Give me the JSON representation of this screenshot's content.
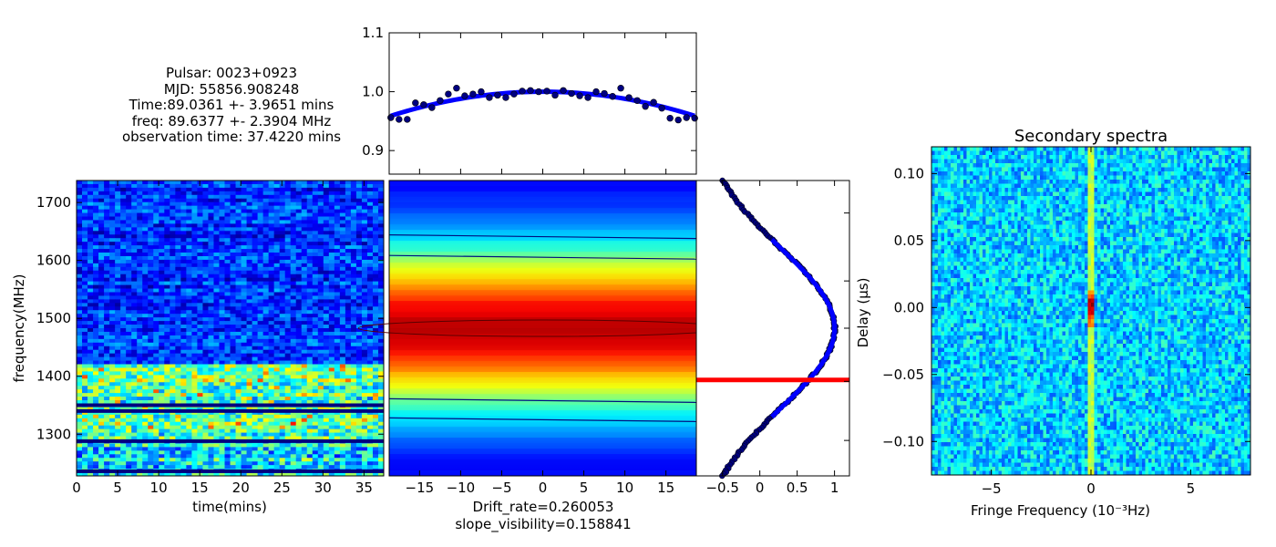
{
  "info": {
    "pulsar": "Pulsar: 0023+0923",
    "mjd": "MJD: 55856.908248",
    "time": "Time:89.0361 +- 3.9651 mins",
    "freq": "freq: 89.6377 +- 2.3904 MHz",
    "obs_time": "observation time: 37.4220 mins"
  },
  "colors": {
    "fit_line": "#0000ff",
    "points": "#000080",
    "marker_line": "#ff0000",
    "colormap": "jet"
  },
  "chart_data": [
    {
      "id": "dynamic-spectrum",
      "type": "heatmap",
      "xlabel": "time(mins)",
      "ylabel": "frequency(MHz)",
      "xlim": [
        0,
        37.4
      ],
      "ylim": [
        1228,
        1738
      ],
      "xticks": [
        0,
        5,
        10,
        15,
        20,
        25,
        30,
        35
      ],
      "yticks": [
        1300,
        1400,
        1500,
        1600,
        1700
      ],
      "bright_bands": [
        [
          1290,
          1420
        ]
      ],
      "dark_lines_mhz": [
        1236,
        1288,
        1340,
        1350
      ]
    },
    {
      "id": "visibility-fit",
      "type": "scatter",
      "ylim": [
        0.86,
        1.1
      ],
      "xlim": [
        -18.7,
        18.7
      ],
      "yticks": [
        0.9,
        1.0,
        1.1
      ],
      "points_x": [
        -18.5,
        -17.5,
        -16.5,
        -15.5,
        -14.5,
        -13.5,
        -12.5,
        -11.5,
        -10.5,
        -9.5,
        -8.5,
        -7.5,
        -6.5,
        -5.5,
        -4.5,
        -3.5,
        -2.5,
        -1.5,
        -0.5,
        0.5,
        1.5,
        2.5,
        3.5,
        4.5,
        5.5,
        6.5,
        7.5,
        8.5,
        9.5,
        10.5,
        11.5,
        12.5,
        13.5,
        14.5,
        15.5,
        16.5,
        17.5,
        18.5
      ],
      "points_y": [
        0.956,
        0.953,
        0.953,
        0.981,
        0.978,
        0.973,
        0.985,
        0.996,
        1.006,
        0.993,
        0.996,
        1.0,
        0.99,
        0.994,
        0.99,
        0.996,
        1.001,
        1.002,
        1.0,
        1.001,
        0.994,
        1.002,
        0.997,
        0.993,
        0.99,
        1.0,
        0.997,
        0.992,
        1.006,
        0.99,
        0.985,
        0.975,
        0.982,
        0.972,
        0.955,
        0.952,
        0.956,
        0.955
      ],
      "fit": "y = 1.0 - 0.00012*x^2"
    },
    {
      "id": "correlation-map",
      "type": "heatmap",
      "xlabel": "Drift_rate=0.260053",
      "xlabel2": "slope_visibility=0.158841",
      "xlim": [
        -18.7,
        18.7
      ],
      "xticks": [
        -15,
        -10,
        -5,
        0,
        5,
        10,
        15
      ],
      "peak_fraction_y": 0.5
    },
    {
      "id": "frequency-profile",
      "type": "line",
      "xlim": [
        -0.85,
        1.2
      ],
      "xticks": [
        -0.5,
        0.0,
        0.5,
        1.0
      ],
      "profile": "gaussian",
      "peak_value": 1.0,
      "width_fraction": 0.27,
      "fit_range_fraction": [
        0.2,
        0.8
      ],
      "marker_fraction_y": 0.675
    },
    {
      "id": "secondary-spectra",
      "type": "heatmap",
      "title": "Secondary spectra",
      "xlabel": "Fringe Frequency",
      "xlabel_unit": "(10⁻³Hz)",
      "ylabel": "Delay (μs)",
      "xlim": [
        -8,
        8
      ],
      "ylim": [
        -0.125,
        0.12
      ],
      "xticks": [
        -5,
        0,
        5
      ],
      "yticks": [
        0.1,
        0.05,
        0.0,
        -0.05,
        -0.1
      ],
      "bright_column_x": 0
    }
  ]
}
